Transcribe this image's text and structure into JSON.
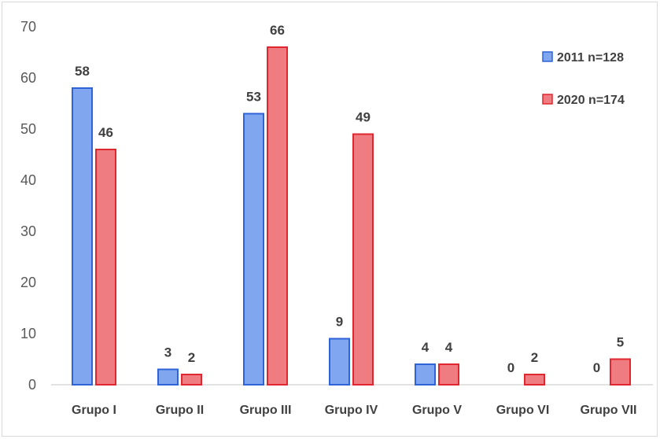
{
  "chart_data": {
    "type": "bar",
    "categories": [
      "Grupo I",
      "Grupo II",
      "Grupo III",
      "Grupo IV",
      "Grupo V",
      "Grupo VI",
      "Grupo VII"
    ],
    "series": [
      {
        "name": "2011 n=128",
        "values": [
          58,
          3,
          53,
          9,
          4,
          0,
          0
        ],
        "fill": "#7fa6ee",
        "stroke": "#2f63d8"
      },
      {
        "name": "2020 n=174",
        "values": [
          46,
          2,
          66,
          49,
          4,
          2,
          5
        ],
        "fill": "#ee7c80",
        "stroke": "#e0262f"
      }
    ],
    "ylim": [
      0,
      70
    ],
    "yticks": [
      0,
      10,
      20,
      30,
      40,
      50,
      60,
      70
    ],
    "legend_position": "top-right",
    "grid": false
  }
}
